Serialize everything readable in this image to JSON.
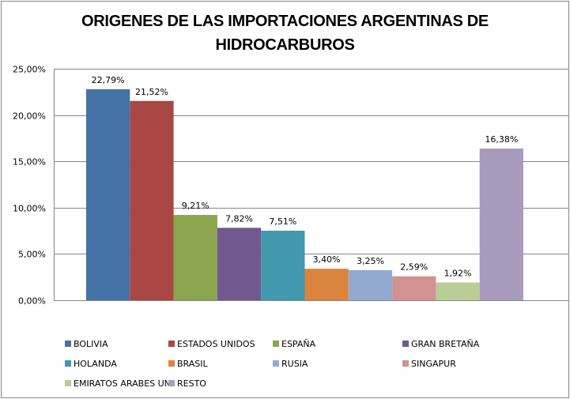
{
  "chart_data": {
    "type": "bar",
    "title": "ORIGENES DE LAS IMPORTACIONES ARGENTINAS DE HIDROCARBUROS",
    "title_lines": [
      "ORIGENES DE LAS IMPORTACIONES ARGENTINAS DE",
      "HIDROCARBUROS"
    ],
    "xlabel": "",
    "ylabel": "",
    "ylim": [
      0,
      25
    ],
    "yticks": [
      0,
      5,
      10,
      15,
      20,
      25
    ],
    "ytick_labels": [
      "0,00%",
      "5,00%",
      "10,00%",
      "15,00%",
      "20,00%",
      "25,00%"
    ],
    "grid": true,
    "legend_position": "bottom",
    "series": [
      {
        "name": "BOLIVIA",
        "value": 22.79,
        "label": "22,79%",
        "color": "#4572A7"
      },
      {
        "name": "ESTADOS UNIDOS",
        "value": 21.52,
        "label": "21,52%",
        "color": "#AA4643"
      },
      {
        "name": "ESPAÑA",
        "value": 9.21,
        "label": "9,21%",
        "color": "#89A54E"
      },
      {
        "name": "GRAN BRETAÑA",
        "value": 7.82,
        "label": "7,82%",
        "color": "#71588F"
      },
      {
        "name": "HOLANDA",
        "value": 7.51,
        "label": "7,51%",
        "color": "#4198AF"
      },
      {
        "name": "BRASIL",
        "value": 3.4,
        "label": "3,40%",
        "color": "#DB843D"
      },
      {
        "name": "RUSIA",
        "value": 3.25,
        "label": "3,25%",
        "color": "#93A9CF"
      },
      {
        "name": "SINGAPUR",
        "value": 2.59,
        "label": "2,59%",
        "color": "#D19392"
      },
      {
        "name": "EMIRATOS ARABES UN.",
        "value": 1.92,
        "label": "1,92%",
        "color": "#B9CD96"
      },
      {
        "name": "RESTO",
        "value": 16.38,
        "label": "16,38%",
        "color": "#A99BBD"
      }
    ]
  }
}
